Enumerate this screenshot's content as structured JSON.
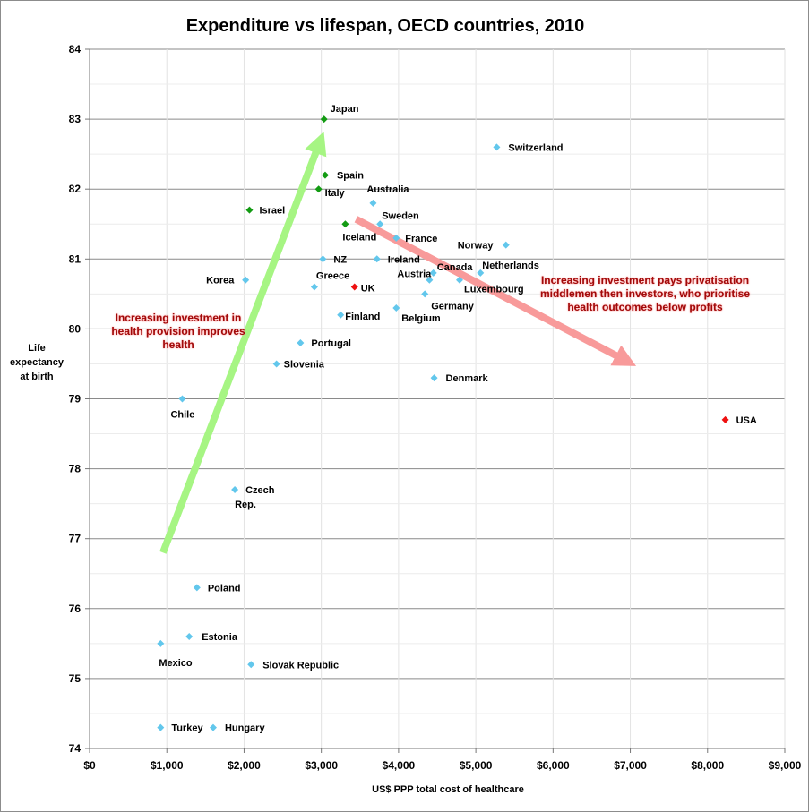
{
  "chart_data": {
    "type": "scatter",
    "title": "Expenditure vs lifespan, OECD countries, 2010",
    "xlabel": "US$ PPP total cost  of healthcare",
    "ylabel_lines": [
      "Life",
      "expectancy",
      "at birth"
    ],
    "xlim": [
      0,
      9000
    ],
    "ylim": [
      74,
      84
    ],
    "x_ticks": [
      0,
      1000,
      2000,
      3000,
      4000,
      5000,
      6000,
      7000,
      8000,
      9000
    ],
    "x_tick_labels": [
      "$0",
      "$1,000",
      "$2,000",
      "$3,000",
      "$4,000",
      "$5,000",
      "$6,000",
      "$7,000",
      "$8,000",
      "$9,000"
    ],
    "y_ticks": [
      74,
      75,
      76,
      77,
      78,
      79,
      80,
      81,
      82,
      83,
      84
    ],
    "y_tick_labels": [
      "74",
      "75",
      "76",
      "77",
      "78",
      "79",
      "80",
      "81",
      "82",
      "83",
      "84"
    ],
    "grid": "horizontal",
    "colors": {
      "default": "#62c7ec",
      "highlight_green": "#139b13",
      "highlight_red": "#ee1111",
      "up_arrow": "#a6f583",
      "down_arrow": "#f89a9a",
      "annotation": "#a10a0a"
    },
    "points": [
      {
        "label": "Japan",
        "x": 3035,
        "y": 83.0,
        "color": "highlight_green"
      },
      {
        "label": "Switzerland",
        "x": 5270,
        "y": 82.6,
        "color": "default"
      },
      {
        "label": "Spain",
        "x": 3050,
        "y": 82.2,
        "color": "highlight_green"
      },
      {
        "label": "Italy",
        "x": 2965,
        "y": 82.0,
        "color": "highlight_green"
      },
      {
        "label": "Australia",
        "x": 3670,
        "y": 81.8,
        "color": "default"
      },
      {
        "label": "Israel",
        "x": 2070,
        "y": 81.7,
        "color": "highlight_green"
      },
      {
        "label": "Sweden",
        "x": 3760,
        "y": 81.5,
        "color": "default"
      },
      {
        "label": "Iceland",
        "x": 3310,
        "y": 81.5,
        "color": "highlight_green"
      },
      {
        "label": "France",
        "x": 3970,
        "y": 81.3,
        "color": "default"
      },
      {
        "label": "Norway",
        "x": 5390,
        "y": 81.2,
        "color": "default"
      },
      {
        "label": "NZ",
        "x": 3020,
        "y": 81.0,
        "color": "default"
      },
      {
        "label": "Ireland",
        "x": 3720,
        "y": 81.0,
        "color": "default"
      },
      {
        "label": "Canada",
        "x": 4450,
        "y": 80.8,
        "color": "default"
      },
      {
        "label": "Netherlands",
        "x": 5060,
        "y": 80.8,
        "color": "default"
      },
      {
        "label": "Korea",
        "x": 2020,
        "y": 80.7,
        "color": "default"
      },
      {
        "label": "Luxembourg",
        "x": 4790,
        "y": 80.7,
        "color": "default"
      },
      {
        "label": "Austria",
        "x": 4400,
        "y": 80.7,
        "color": "default"
      },
      {
        "label": "Greece",
        "x": 2910,
        "y": 80.6,
        "color": "default"
      },
      {
        "label": "UK",
        "x": 3430,
        "y": 80.6,
        "color": "highlight_red"
      },
      {
        "label": "Germany",
        "x": 4340,
        "y": 80.5,
        "color": "default"
      },
      {
        "label": "Belgium",
        "x": 3970,
        "y": 80.3,
        "color": "default"
      },
      {
        "label": "Finland",
        "x": 3250,
        "y": 80.2,
        "color": "default"
      },
      {
        "label": "Portugal",
        "x": 2730,
        "y": 79.8,
        "color": "default"
      },
      {
        "label": "Slovenia",
        "x": 2420,
        "y": 79.5,
        "color": "default"
      },
      {
        "label": "Denmark",
        "x": 4460,
        "y": 79.3,
        "color": "default"
      },
      {
        "label": "Chile",
        "x": 1200,
        "y": 79.0,
        "color": "default"
      },
      {
        "label": "USA",
        "x": 8230,
        "y": 78.7,
        "color": "highlight_red"
      },
      {
        "label": "Czech Rep.",
        "x": 1880,
        "y": 77.7,
        "color": "default"
      },
      {
        "label": "Poland",
        "x": 1390,
        "y": 76.3,
        "color": "default"
      },
      {
        "label": "Estonia",
        "x": 1290,
        "y": 75.6,
        "color": "default"
      },
      {
        "label": "Mexico",
        "x": 920,
        "y": 75.5,
        "color": "default"
      },
      {
        "label": "Slovak Republic",
        "x": 2090,
        "y": 75.2,
        "color": "default"
      },
      {
        "label": "Turkey",
        "x": 920,
        "y": 74.3,
        "color": "default"
      },
      {
        "label": "Hungary",
        "x": 1600,
        "y": 74.3,
        "color": "default"
      }
    ],
    "annotations": [
      {
        "text": "Increasing investment in health provision improves health",
        "arrow_from": {
          "x": 950,
          "y": 76.8
        },
        "arrow_to": {
          "x": 2990,
          "y": 82.7
        },
        "arrow_color": "up_arrow"
      },
      {
        "text": "Increasing investment pays  privatisation middlemen then  investors, who prioritise health outcomes below profits",
        "arrow_from": {
          "x": 3450,
          "y": 81.57
        },
        "arrow_to": {
          "x": 6970,
          "y": 79.53
        },
        "arrow_color": "down_arrow"
      }
    ]
  }
}
